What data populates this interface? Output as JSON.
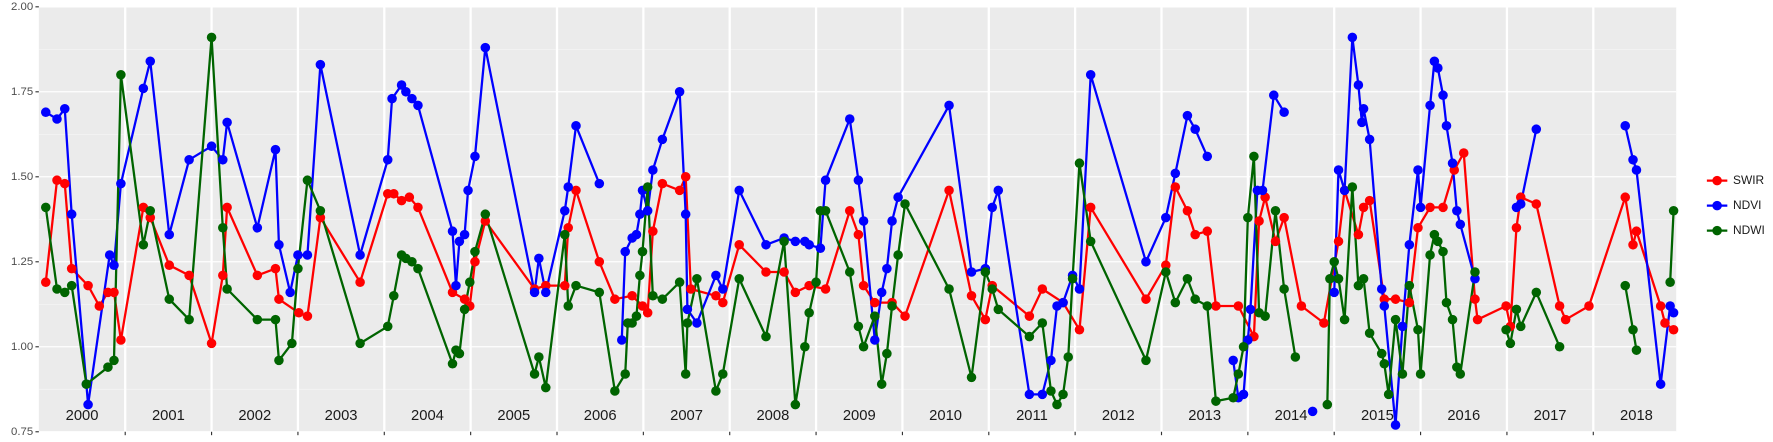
{
  "chart_data": {
    "type": "line",
    "xlim": [
      2000,
      2018.96
    ],
    "ylim": [
      0.75,
      2.0
    ],
    "xticks": [
      {
        "value": 2000.5,
        "label": "2000"
      },
      {
        "value": 2001.5,
        "label": "2001"
      },
      {
        "value": 2002.5,
        "label": "2002"
      },
      {
        "value": 2003.5,
        "label": "2003"
      },
      {
        "value": 2004.5,
        "label": "2004"
      },
      {
        "value": 2005.5,
        "label": "2005"
      },
      {
        "value": 2006.5,
        "label": "2006"
      },
      {
        "value": 2007.5,
        "label": "2007"
      },
      {
        "value": 2008.5,
        "label": "2008"
      },
      {
        "value": 2009.5,
        "label": "2009"
      },
      {
        "value": 2010.5,
        "label": "2010"
      },
      {
        "value": 2011.5,
        "label": "2011"
      },
      {
        "value": 2012.5,
        "label": "2012"
      },
      {
        "value": 2013.5,
        "label": "2013"
      },
      {
        "value": 2014.5,
        "label": "2014"
      },
      {
        "value": 2015.5,
        "label": "2015"
      },
      {
        "value": 2016.5,
        "label": "2016"
      },
      {
        "value": 2017.5,
        "label": "2017"
      },
      {
        "value": 2018.5,
        "label": "2018"
      }
    ],
    "xgrid": [
      2001,
      2002,
      2003,
      2004,
      2005,
      2006,
      2007,
      2008,
      2009,
      2010,
      2011,
      2012,
      2013,
      2014,
      2015,
      2016,
      2017,
      2018
    ],
    "yticks": [
      {
        "value": 0.75,
        "label": "0.75"
      },
      {
        "value": 1.0,
        "label": "1.00"
      },
      {
        "value": 1.25,
        "label": "1.25"
      },
      {
        "value": 1.5,
        "label": "1.50"
      },
      {
        "value": 1.75,
        "label": "1.75"
      },
      {
        "value": 2.0,
        "label": "2.00"
      }
    ],
    "yminor": [
      0.875,
      1.125,
      1.375,
      1.625,
      1.875
    ],
    "grid": true,
    "legend": "right",
    "series": [
      {
        "name": "SWIR",
        "color": "#ff0000",
        "x": [
          2000.08,
          2000.21,
          2000.3,
          2000.38,
          2000.57,
          2000.7,
          2000.8,
          2000.87,
          2000.95,
          2001.21,
          2001.29,
          2001.51,
          2001.74,
          2002.0,
          2002.13,
          2002.18,
          2002.53,
          2002.74,
          2002.78,
          2003.01,
          2003.11,
          2003.26,
          2003.72,
          2004.04,
          2004.11,
          2004.2,
          2004.29,
          2004.39,
          2004.79,
          2004.93,
          2004.99,
          2005.05,
          2005.17,
          2005.74,
          2005.87,
          2006.09,
          2006.13,
          2006.22,
          2006.49,
          2006.67,
          2006.87,
          2006.99,
          2007.05,
          2007.11,
          2007.22,
          2007.42,
          2007.49,
          2007.55,
          2007.84,
          2007.92,
          2008.11,
          2008.42,
          2008.63,
          2008.76,
          2008.92,
          2009.11,
          2009.39,
          2009.49,
          2009.55,
          2009.68,
          2009.88,
          2010.03,
          2010.54,
          2010.8,
          2010.96,
          2011.04,
          2011.47,
          2011.62,
          2011.86,
          2012.05,
          2012.18,
          2012.82,
          2013.05,
          2013.16,
          2013.3,
          2013.39,
          2013.53,
          2013.63,
          2013.89,
          2014.07,
          2014.13,
          2014.2,
          2014.32,
          2014.42,
          2014.62,
          2014.88,
          2015.05,
          2015.12,
          2015.28,
          2015.34,
          2015.41,
          2015.58,
          2015.71,
          2015.87,
          2015.97,
          2016.11,
          2016.26,
          2016.39,
          2016.5,
          2016.63,
          2016.66,
          2016.99,
          2017.04,
          2017.11,
          2017.16,
          2017.34,
          2017.61,
          2017.68,
          2017.95,
          2018.37,
          2018.46,
          2018.5,
          2018.78,
          2018.83,
          2018.93
        ],
        "values": [
          1.19,
          1.49,
          1.48,
          1.23,
          1.18,
          1.12,
          1.16,
          1.16,
          1.02,
          1.41,
          1.38,
          1.24,
          1.21,
          1.01,
          1.21,
          1.41,
          1.21,
          1.23,
          1.14,
          1.1,
          1.09,
          1.38,
          1.19,
          1.45,
          1.45,
          1.43,
          1.44,
          1.41,
          1.16,
          1.14,
          1.12,
          1.25,
          1.37,
          1.17,
          1.18,
          1.18,
          1.35,
          1.46,
          1.25,
          1.14,
          1.15,
          1.12,
          1.1,
          1.34,
          1.48,
          1.46,
          1.5,
          1.17,
          1.15,
          1.13,
          1.3,
          1.22,
          1.22,
          1.16,
          1.18,
          1.17,
          1.4,
          1.33,
          1.18,
          1.13,
          1.13,
          1.09,
          1.46,
          1.15,
          1.08,
          1.18,
          1.09,
          1.17,
          1.13,
          1.05,
          1.41,
          1.14,
          1.24,
          1.47,
          1.4,
          1.33,
          1.34,
          1.12,
          1.12,
          1.03,
          1.37,
          1.44,
          1.31,
          1.38,
          1.12,
          1.07,
          1.31,
          1.46,
          1.33,
          1.41,
          1.43,
          1.14,
          1.14,
          1.13,
          1.35,
          1.41,
          1.41,
          1.52,
          1.57,
          1.14,
          1.08,
          1.12,
          1.06,
          1.35,
          1.44,
          1.42,
          1.12,
          1.08,
          1.12,
          1.44,
          1.3,
          1.34,
          1.12,
          1.07,
          1.05
        ]
      },
      {
        "name": "NDVI",
        "color": "#0000ff",
        "x": [
          2000.08,
          2000.21,
          2000.3,
          2000.38,
          2000.55,
          2000.57,
          2000.82,
          2000.87,
          2000.95,
          2001.21,
          2001.29,
          2001.51,
          2001.74,
          2002.0,
          2002.13,
          2002.18,
          2002.53,
          2002.74,
          2002.78,
          2002.91,
          2003.0,
          2003.11,
          2003.26,
          2003.72,
          2004.04,
          2004.09,
          2004.2,
          2004.25,
          2004.32,
          2004.39,
          2004.79,
          2004.83,
          2004.87,
          2004.93,
          2004.97,
          2005.05,
          2005.17,
          2005.74,
          2005.79,
          2005.87,
          2006.09,
          2006.13,
          2006.22,
          2006.49,
          null,
          2006.75,
          2006.79,
          2006.87,
          2006.92,
          2006.96,
          2006.99,
          2007.05,
          2007.11,
          2007.22,
          2007.42,
          2007.49,
          2007.51,
          2007.62,
          2007.84,
          2007.92,
          2008.11,
          2008.42,
          2008.63,
          2008.76,
          2008.87,
          2008.92,
          2009.05,
          2009.11,
          2009.39,
          2009.49,
          2009.55,
          2009.68,
          2009.76,
          2009.82,
          2009.88,
          2009.95,
          2010.54,
          2010.8,
          2010.96,
          2011.04,
          2011.11,
          2011.47,
          2011.62,
          2011.72,
          2011.79,
          2011.86,
          2011.97,
          2012.05,
          2012.18,
          2012.82,
          2013.05,
          2013.16,
          2013.3,
          2013.39,
          2013.53,
          null,
          2013.83,
          2013.89,
          2013.95,
          2014.0,
          2014.03,
          2014.11,
          2014.17,
          2014.3,
          2014.42,
          null,
          2014.75,
          null,
          2015.0,
          2015.05,
          2015.12,
          2015.21,
          2015.28,
          2015.32,
          2015.34,
          2015.41,
          2015.55,
          2015.58,
          2015.71,
          2015.79,
          2015.87,
          2015.97,
          2016.0,
          2016.11,
          2016.16,
          2016.2,
          2016.26,
          2016.3,
          2016.37,
          2016.42,
          2016.46,
          2016.63,
          null,
          2017.11,
          2017.16,
          2017.34,
          null,
          2018.37,
          2018.46,
          2018.5,
          2018.78,
          2018.89,
          2018.93
        ],
        "values": [
          1.69,
          1.67,
          1.7,
          1.39,
          0.89,
          0.83,
          1.27,
          1.24,
          1.48,
          1.76,
          1.84,
          1.33,
          1.55,
          1.59,
          1.55,
          1.66,
          1.35,
          1.58,
          1.3,
          1.16,
          1.27,
          1.27,
          1.83,
          1.27,
          1.55,
          1.73,
          1.77,
          1.75,
          1.73,
          1.71,
          1.34,
          1.18,
          1.31,
          1.33,
          1.46,
          1.56,
          1.88,
          1.16,
          1.26,
          1.16,
          1.4,
          1.47,
          1.65,
          1.48,
          null,
          1.02,
          1.28,
          1.32,
          1.33,
          1.39,
          1.46,
          1.4,
          1.52,
          1.61,
          1.75,
          1.39,
          1.11,
          1.07,
          1.21,
          1.17,
          1.46,
          1.3,
          1.32,
          1.31,
          1.31,
          1.3,
          1.29,
          1.49,
          1.67,
          1.49,
          1.37,
          1.02,
          1.16,
          1.23,
          1.37,
          1.44,
          1.71,
          1.22,
          1.23,
          1.41,
          1.46,
          0.86,
          0.86,
          0.96,
          1.12,
          1.13,
          1.21,
          1.17,
          1.8,
          1.25,
          1.38,
          1.51,
          1.68,
          1.64,
          1.56,
          null,
          0.96,
          0.85,
          0.86,
          1.02,
          1.11,
          1.46,
          1.46,
          1.74,
          1.69,
          null,
          0.81,
          null,
          1.16,
          1.52,
          1.46,
          1.91,
          1.77,
          1.66,
          1.7,
          1.61,
          1.17,
          1.12,
          0.77,
          1.06,
          1.3,
          1.52,
          1.41,
          1.71,
          1.84,
          1.82,
          1.74,
          1.65,
          1.54,
          1.4,
          1.36,
          1.2,
          null,
          1.41,
          1.42,
          1.64,
          null,
          1.65,
          1.55,
          1.52,
          0.89,
          1.12,
          1.1
        ]
      },
      {
        "name": "NDWI",
        "color": "#006400",
        "x": [
          2000.08,
          2000.21,
          2000.3,
          2000.38,
          2000.55,
          2000.8,
          2000.87,
          2000.95,
          2001.21,
          2001.29,
          2001.51,
          2001.74,
          2002.0,
          2002.13,
          2002.18,
          2002.53,
          2002.74,
          2002.78,
          2002.93,
          2003.0,
          2003.11,
          2003.26,
          2003.72,
          2004.04,
          2004.11,
          2004.2,
          2004.25,
          2004.32,
          2004.39,
          2004.79,
          2004.83,
          2004.87,
          2004.93,
          2004.99,
          2005.05,
          2005.17,
          2005.74,
          2005.79,
          2005.87,
          2006.09,
          2006.13,
          2006.22,
          2006.49,
          2006.67,
          2006.79,
          2006.82,
          2006.87,
          2006.92,
          2006.96,
          2006.99,
          2007.05,
          2007.11,
          2007.22,
          2007.42,
          2007.49,
          2007.51,
          2007.62,
          2007.84,
          2007.92,
          2008.11,
          2008.42,
          2008.63,
          2008.76,
          2008.87,
          2008.92,
          2009.0,
          2009.05,
          2009.11,
          2009.39,
          2009.49,
          2009.55,
          2009.68,
          2009.76,
          2009.82,
          2009.88,
          2009.95,
          2010.03,
          2010.54,
          2010.8,
          2010.96,
          2011.04,
          2011.11,
          2011.47,
          2011.62,
          2011.72,
          2011.79,
          2011.86,
          2011.92,
          2011.97,
          2012.05,
          2012.18,
          2012.82,
          2013.05,
          2013.16,
          2013.3,
          2013.39,
          2013.53,
          2013.63,
          2013.83,
          2013.89,
          2013.95,
          2014.0,
          2014.07,
          2014.13,
          2014.2,
          2014.32,
          2014.42,
          2014.55,
          null,
          2014.92,
          2014.95,
          2015.0,
          2015.05,
          2015.12,
          2015.21,
          2015.28,
          2015.34,
          2015.41,
          2015.55,
          2015.58,
          2015.63,
          2015.71,
          2015.79,
          2015.87,
          2015.97,
          2016.0,
          2016.11,
          2016.16,
          2016.2,
          2016.26,
          2016.3,
          2016.37,
          2016.42,
          2016.46,
          2016.63,
          null,
          2016.99,
          2017.04,
          2017.11,
          2017.16,
          2017.34,
          2017.61,
          null,
          2018.37,
          2018.46,
          2018.5,
          null,
          2018.89,
          2018.93
        ],
        "values": [
          1.41,
          1.17,
          1.16,
          1.18,
          0.89,
          0.94,
          0.96,
          1.8,
          1.3,
          1.4,
          1.14,
          1.08,
          1.91,
          1.35,
          1.17,
          1.08,
          1.08,
          0.96,
          1.01,
          1.23,
          1.49,
          1.4,
          1.01,
          1.06,
          1.15,
          1.27,
          1.26,
          1.25,
          1.23,
          0.95,
          0.99,
          0.98,
          1.11,
          1.19,
          1.28,
          1.39,
          0.92,
          0.97,
          0.88,
          1.33,
          1.12,
          1.18,
          1.16,
          0.87,
          0.92,
          1.07,
          1.07,
          1.09,
          1.21,
          1.28,
          1.47,
          1.15,
          1.14,
          1.19,
          0.92,
          1.07,
          1.2,
          0.87,
          0.92,
          1.2,
          1.03,
          1.31,
          0.83,
          1.0,
          1.1,
          1.19,
          1.4,
          1.4,
          1.22,
          1.06,
          1.0,
          1.09,
          0.89,
          0.98,
          1.12,
          1.27,
          1.42,
          1.17,
          0.91,
          1.22,
          1.17,
          1.11,
          1.03,
          1.07,
          0.87,
          0.83,
          0.86,
          0.97,
          1.2,
          1.54,
          1.31,
          0.96,
          1.22,
          1.13,
          1.2,
          1.14,
          1.12,
          0.84,
          0.85,
          0.92,
          1.0,
          1.38,
          1.56,
          1.1,
          1.09,
          1.4,
          1.17,
          0.97,
          null,
          0.83,
          1.2,
          1.25,
          1.2,
          1.08,
          1.47,
          1.18,
          1.2,
          1.04,
          0.98,
          0.95,
          0.86,
          1.08,
          0.92,
          1.18,
          1.05,
          0.92,
          1.27,
          1.33,
          1.31,
          1.28,
          1.13,
          1.08,
          0.94,
          0.92,
          1.22,
          null,
          1.05,
          1.01,
          1.11,
          1.06,
          1.16,
          1.0,
          null,
          1.18,
          1.05,
          0.99,
          null,
          1.19,
          1.4
        ]
      }
    ]
  }
}
